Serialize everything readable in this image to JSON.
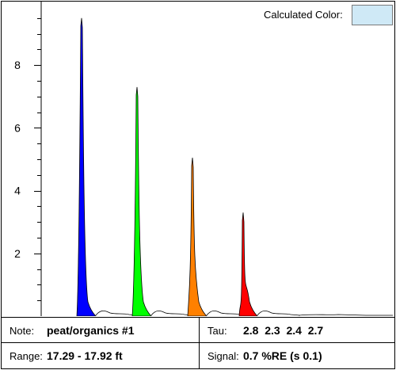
{
  "calculated_color": {
    "label": "Calculated Color:",
    "swatch_color": "#cfe9f6"
  },
  "info": {
    "note_label": "Note:",
    "note_value": "peat/organics #1",
    "tau_label": "Tau:",
    "tau_values": "2.8  2.3  2.4  2.7",
    "range_label": "Range:",
    "range_value": "17.29 - 17.92 ft",
    "signal_label": "Signal:",
    "signal_value": "0.7 %RE (s 0.1)"
  },
  "chart_data": {
    "type": "area",
    "title": "",
    "xlabel": "",
    "ylabel": "",
    "ylim": [
      0,
      10
    ],
    "y_ticks": [
      "2",
      "4",
      "6",
      "8"
    ],
    "grid": false,
    "series": [
      {
        "color": "#0000ff",
        "peak": 9.5
      },
      {
        "color": "#00ff00",
        "peak": 7.3
      },
      {
        "color": "#ff8000",
        "peak": 5.05
      },
      {
        "color": "#ff0000",
        "peak": 3.3
      }
    ]
  }
}
